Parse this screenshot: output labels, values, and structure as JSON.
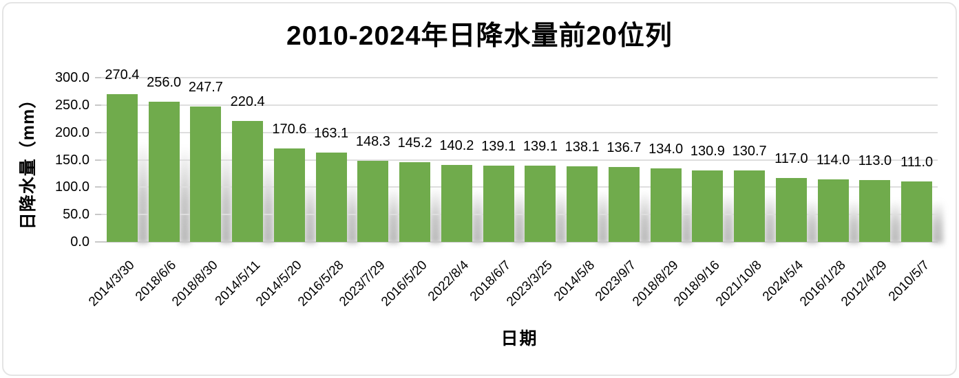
{
  "chart_data": {
    "type": "bar",
    "title": "2010-2024年日降水量前20位列",
    "xlabel": "日期",
    "ylabel": "日降水量（mm）",
    "categories": [
      "2014/3/30",
      "2018/6/6",
      "2018/8/30",
      "2014/5/11",
      "2014/5/20",
      "2016/5/28",
      "2023/7/29",
      "2016/5/20",
      "2022/8/4",
      "2018/6/7",
      "2023/3/25",
      "2014/5/8",
      "2023/9/7",
      "2018/8/29",
      "2018/9/16",
      "2021/10/8",
      "2024/5/4",
      "2016/1/28",
      "2012/4/29",
      "2010/5/7"
    ],
    "values": [
      270.4,
      256.0,
      247.7,
      220.4,
      170.6,
      163.1,
      148.3,
      145.2,
      140.2,
      139.1,
      139.1,
      138.1,
      136.7,
      134.0,
      130.9,
      130.7,
      117.0,
      114.0,
      113.0,
      111.0
    ],
    "data_labels": [
      "270.4",
      "256.0",
      "247.7",
      "220.4",
      "170.6",
      "163.1",
      "148.3",
      "145.2",
      "140.2",
      "139.1",
      "139.1",
      "138.1",
      "136.7",
      "134.0",
      "130.9",
      "130.7",
      "117.0",
      "114.0",
      "113.0",
      "111.0"
    ],
    "ylim": [
      0,
      300
    ],
    "ytick_step": 50,
    "ytick_labels": [
      "300.0",
      "250.0",
      "200.0",
      "150.0",
      "100.0",
      "50.0",
      "0.0"
    ],
    "grid": true,
    "legend": false,
    "bar_color": "#70ab4c",
    "gridline_color": "#dedede",
    "axis_line_color": "#c8c8c8",
    "text_color": "#000000",
    "frame_border_color": "#e4e4e4",
    "background": "#ffffff"
  }
}
